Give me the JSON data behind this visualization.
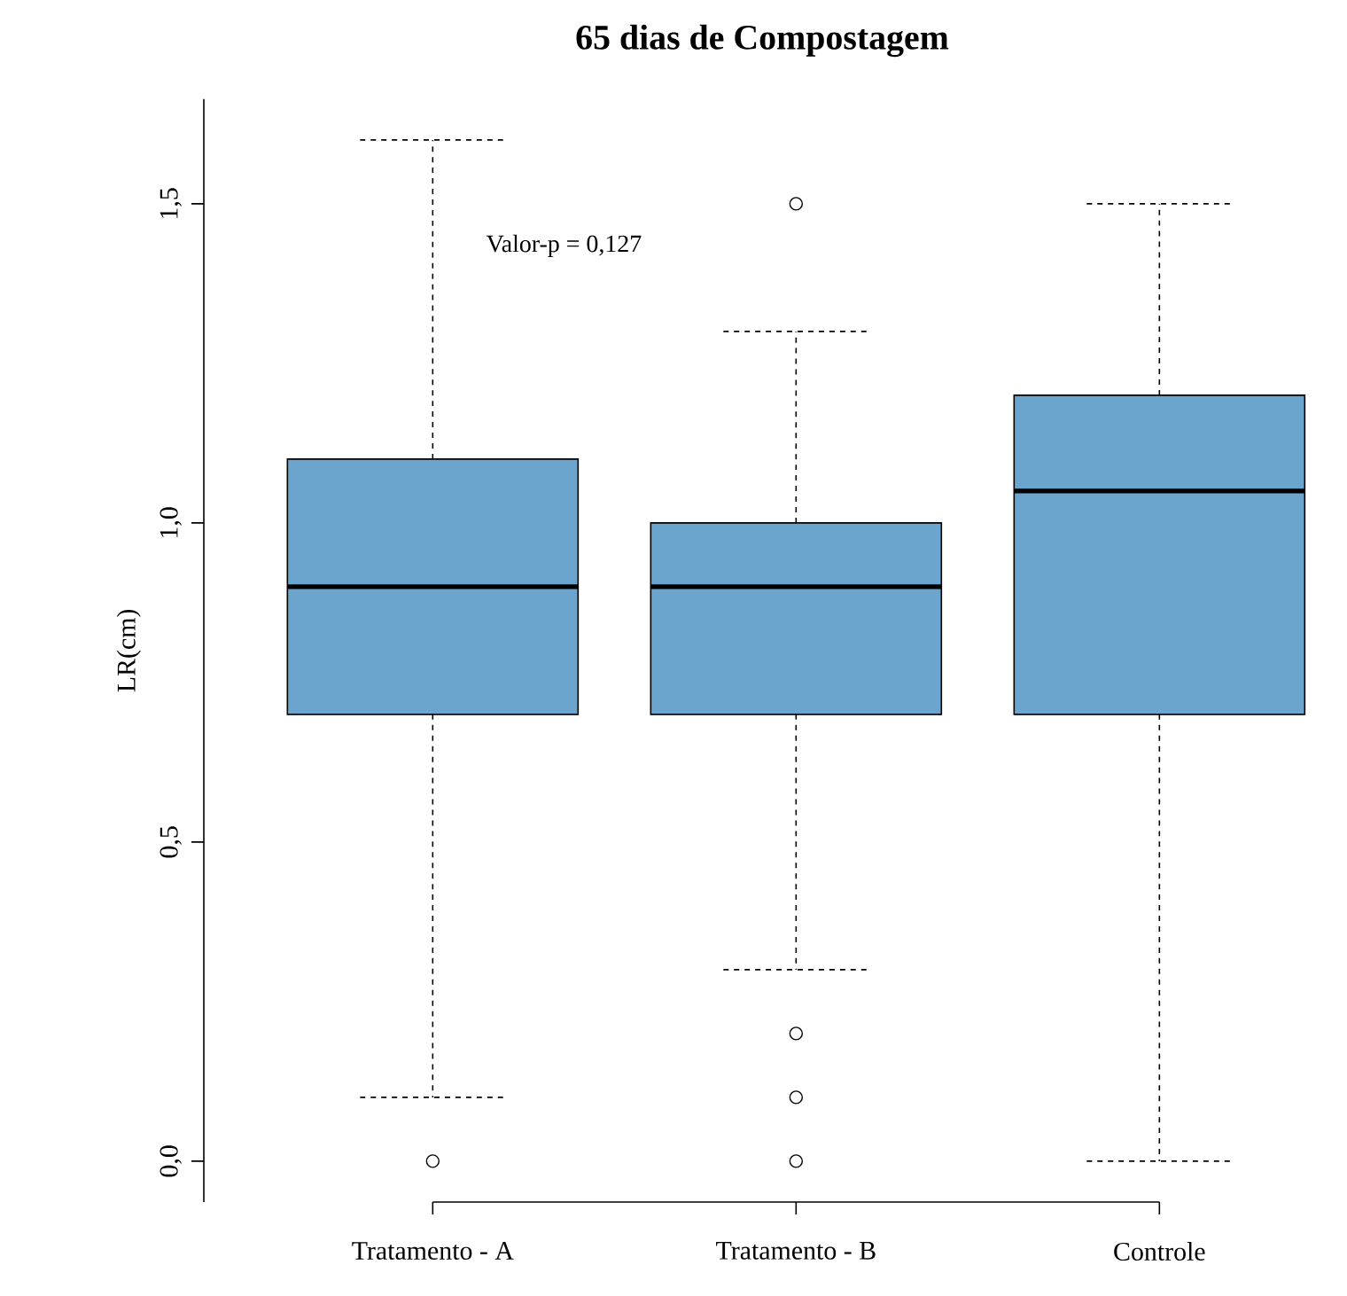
{
  "chart_data": {
    "type": "box",
    "title": "65 dias de Compostagem",
    "ylabel": "LR(cm)",
    "categories": [
      "Tratamento - A",
      "Tratamento - B",
      "Controle"
    ],
    "color": "#6ba4cc",
    "boxes": [
      {
        "low": 0.1,
        "q1": 0.7,
        "median": 0.9,
        "q3": 1.1,
        "high": 1.6,
        "outliers": [
          0.0
        ]
      },
      {
        "low": 0.3,
        "q1": 0.7,
        "median": 0.9,
        "q3": 1.0,
        "high": 1.3,
        "outliers": [
          1.5,
          0.2,
          0.1,
          0.0
        ]
      },
      {
        "low": 0.0,
        "q1": 0.7,
        "median": 1.05,
        "q3": 1.2,
        "high": 1.5
      }
    ],
    "ylim": [
      -0.064,
      1.664
    ],
    "yticks": [
      {
        "value": 0,
        "label": "0,0"
      },
      {
        "value": 0.5,
        "label": "0,5"
      },
      {
        "value": 1.0,
        "label": "1,0"
      },
      {
        "value": 1.5,
        "label": "1,5"
      }
    ],
    "grid": false,
    "annotations": [
      "Valor-p = 0,127"
    ]
  }
}
